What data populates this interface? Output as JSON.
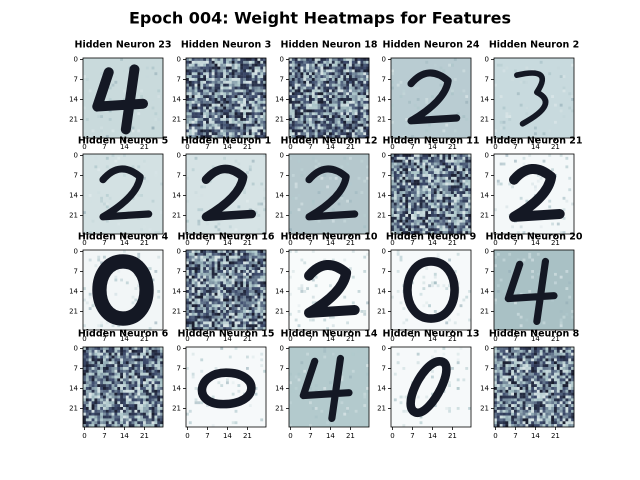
{
  "chart_data": {
    "type": "heatmap",
    "title": "Epoch 004: Weight Heatmaps for Features",
    "xlim": [
      -0.5,
      27.5
    ],
    "ylim": [
      -0.5,
      27.5
    ],
    "xticks": [
      0,
      7,
      14,
      21
    ],
    "yticks": [
      0,
      7,
      14,
      21
    ],
    "panels": [
      {
        "title": "Hidden Neuron 23"
      },
      {
        "title": "Hidden Neuron 3"
      },
      {
        "title": "Hidden Neuron 18"
      },
      {
        "title": "Hidden Neuron 24"
      },
      {
        "title": "Hidden Neuron 2"
      },
      {
        "title": "Hidden Neuron 5"
      },
      {
        "title": "Hidden Neuron 1"
      },
      {
        "title": "Hidden Neuron 12"
      },
      {
        "title": "Hidden Neuron 11"
      },
      {
        "title": "Hidden Neuron 21"
      },
      {
        "title": "Hidden Neuron 4"
      },
      {
        "title": "Hidden Neuron 16"
      },
      {
        "title": "Hidden Neuron 10"
      },
      {
        "title": "Hidden Neuron 9"
      },
      {
        "title": "Hidden Neuron 20"
      },
      {
        "title": "Hidden Neuron 6"
      },
      {
        "title": "Hidden Neuron 15"
      },
      {
        "title": "Hidden Neuron 14"
      },
      {
        "title": "Hidden Neuron 13"
      },
      {
        "title": "Hidden Neuron 8"
      }
    ]
  }
}
